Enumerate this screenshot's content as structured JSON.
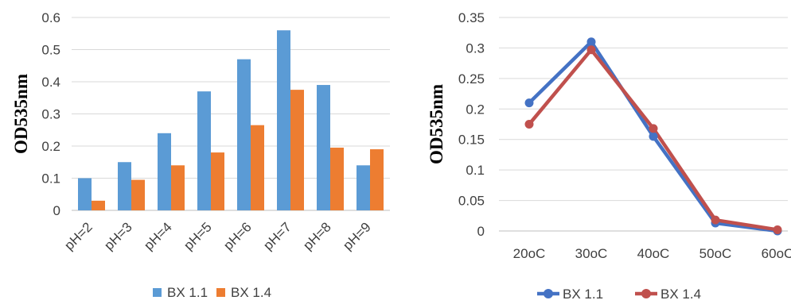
{
  "colors": {
    "bx11": "#5B9BD5",
    "bx14": "#ED7D31",
    "bx11_line": "#4472C4",
    "bx14_line": "#C0504D",
    "grid": "#D9D9D9",
    "axis": "#BFBFBF"
  },
  "chart_data": [
    {
      "type": "bar",
      "ylabel": "OD535nm",
      "categories": [
        "pH=2",
        "pH=3",
        "pH=4",
        "pH=5",
        "pH=6",
        "pH=7",
        "pH=8",
        "pH=9"
      ],
      "series": [
        {
          "name": "BX 1.1",
          "values": [
            0.1,
            0.15,
            0.24,
            0.37,
            0.47,
            0.56,
            0.39,
            0.14
          ]
        },
        {
          "name": "BX 1.4",
          "values": [
            0.03,
            0.095,
            0.14,
            0.18,
            0.265,
            0.375,
            0.195,
            0.19
          ]
        }
      ],
      "ylim": [
        0,
        0.6
      ],
      "yticks": [
        "0",
        "0.1",
        "0.2",
        "0.3",
        "0.4",
        "0.5",
        "0.6"
      ],
      "grid": true,
      "legend": "bottom"
    },
    {
      "type": "line",
      "ylabel": "OD535nm",
      "categories": [
        "20oC",
        "30oC",
        "40oC",
        "50oC",
        "60oC"
      ],
      "series": [
        {
          "name": "BX 1.1",
          "values": [
            0.21,
            0.31,
            0.155,
            0.013,
            0.0
          ]
        },
        {
          "name": "BX 1.4",
          "values": [
            0.175,
            0.297,
            0.168,
            0.018,
            0.002
          ]
        }
      ],
      "ylim": [
        0,
        0.35
      ],
      "yticks": [
        "0",
        "0.05",
        "0.1",
        "0.15",
        "0.2",
        "0.25",
        "0.3",
        "0.35"
      ],
      "grid": true,
      "legend": "bottom"
    }
  ]
}
